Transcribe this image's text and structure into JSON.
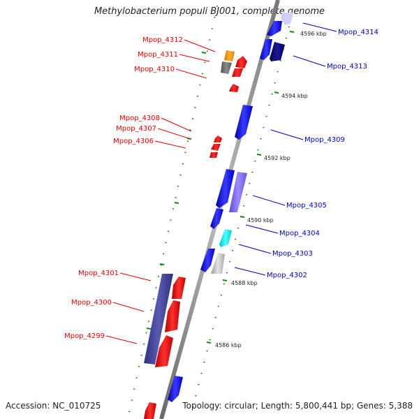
{
  "title": "Methylobacterium populi BJ001, complete genome",
  "footer": {
    "accession": "Accession: NC_010725",
    "summary": "Topology: circular; Length: 5,800,441 bp; Genes: 5,388"
  },
  "colors": {
    "reverse_label": "#e00000",
    "forward_label": "#0000c0",
    "backbone": "#888888",
    "tick": "#118811"
  },
  "scale_labels": [
    "4596 kbp",
    "4594 kbp",
    "4592 kbp",
    "4590 kbp",
    "4588 kbp",
    "4586 kbp"
  ],
  "reverse_genes": [
    "Mpop_4312",
    "Mpop_4311",
    "Mpop_4310",
    "Mpop_4308",
    "Mpop_4307",
    "Mpop_4306",
    "Mpop_4301",
    "Mpop_4300",
    "Mpop_4299"
  ],
  "forward_genes": [
    "Mpop_4314",
    "Mpop_4313",
    "Mpop_4309",
    "Mpop_4305",
    "Mpop_4304",
    "Mpop_4303",
    "Mpop_4302"
  ]
}
